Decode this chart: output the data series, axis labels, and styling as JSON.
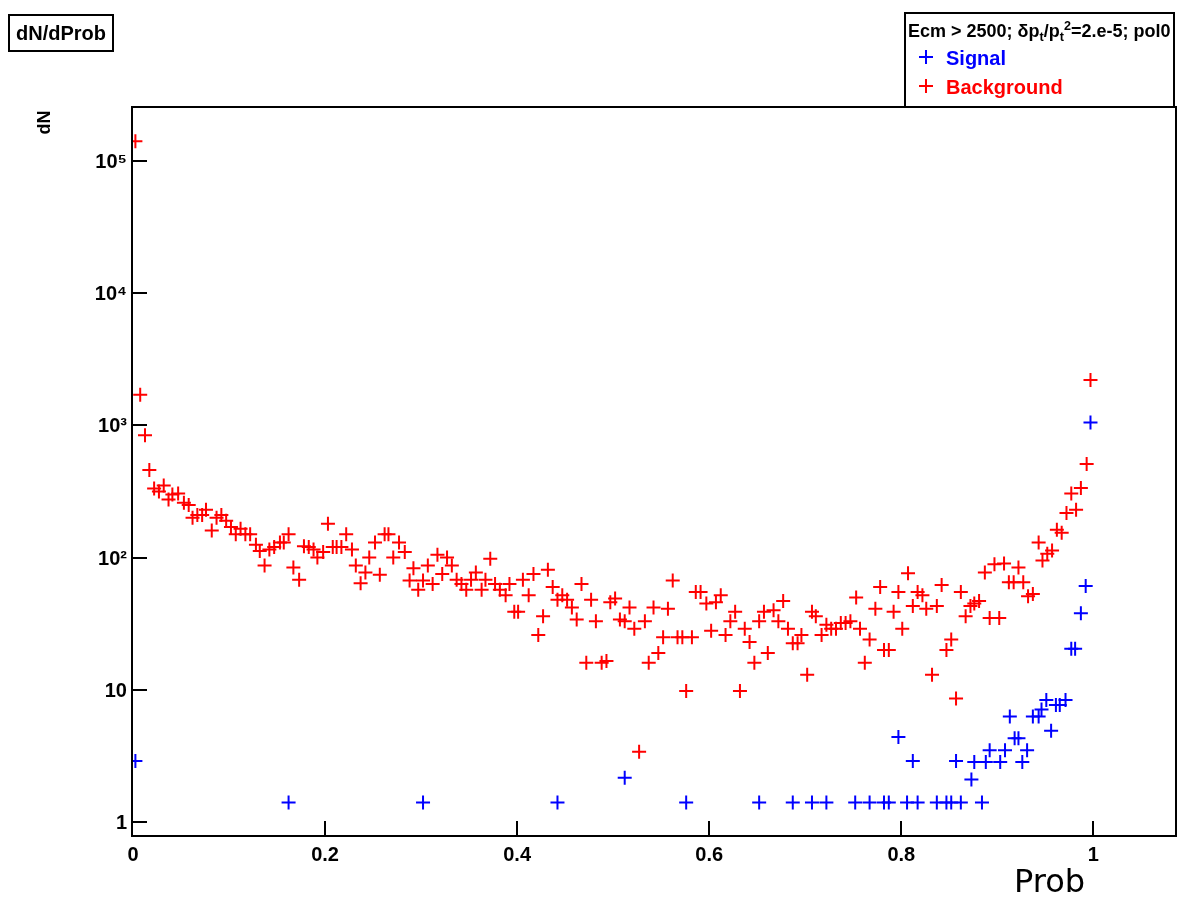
{
  "chart_data": {
    "type": "scatter",
    "title": "dN/dProb",
    "xlabel": "Prob",
    "ylabel": "dN",
    "legend_title": "Ecm > 2500; δp$_{t}$/p$_{t}$$^{2}$=2.e-5; pol0",
    "log": "y",
    "marker": "cross",
    "legend": "top right",
    "grid": false,
    "xlim": [
      0,
      1.085
    ],
    "xticks": [
      0,
      0.2,
      0.4,
      0.6,
      0.8,
      1
    ],
    "ylim": [
      0.8,
      250000
    ],
    "yticks": [
      1,
      10,
      {
        "value": 100,
        "label": "10²"
      },
      {
        "value": 1000,
        "label": "10³"
      },
      {
        "value": 10000,
        "label": "10⁴"
      },
      {
        "value": 100000,
        "label": "10⁵"
      }
    ],
    "series": [
      {
        "name": "Signal",
        "color": "#0000ff",
        "x": [
          0.0025,
          0.162,
          0.302,
          0.442,
          0.512,
          0.576,
          0.652,
          0.687,
          0.707,
          0.722,
          0.752,
          0.767,
          0.782,
          0.787,
          0.797,
          0.806,
          0.812,
          0.817,
          0.837,
          0.847,
          0.852,
          0.857,
          0.862,
          0.873,
          0.876,
          0.884,
          0.888,
          0.892,
          0.903,
          0.908,
          0.913,
          0.918,
          0.922,
          0.926,
          0.931,
          0.937,
          0.943,
          0.946,
          0.951,
          0.956,
          0.961,
          0.965,
          0.971,
          0.977,
          0.981,
          0.987,
          0.992,
          0.997
        ],
        "values": [
          2.9,
          1.41,
          1.41,
          1.41,
          2.17,
          1.41,
          1.41,
          1.41,
          1.41,
          1.41,
          1.41,
          1.41,
          1.41,
          1.41,
          4.4,
          1.41,
          2.9,
          1.41,
          1.41,
          1.41,
          1.41,
          2.9,
          1.41,
          2.1,
          2.85,
          1.41,
          2.85,
          3.5,
          2.85,
          3.5,
          6.3,
          4.3,
          4.3,
          2.85,
          3.5,
          6.3,
          6.3,
          7.1,
          8.4,
          4.9,
          7.7,
          7.7,
          8.4,
          20.5,
          20.5,
          38,
          61,
          1050
        ]
      },
      {
        "name": "Background",
        "color": "#ff0000",
        "x": [
          0.0025,
          0.0075,
          0.0125,
          0.017,
          0.022,
          0.027,
          0.032,
          0.037,
          0.041,
          0.047,
          0.053,
          0.058,
          0.062,
          0.067,
          0.072,
          0.076,
          0.082,
          0.087,
          0.092,
          0.097,
          0.102,
          0.107,
          0.112,
          0.117,
          0.122,
          0.128,
          0.132,
          0.137,
          0.142,
          0.147,
          0.153,
          0.157,
          0.162,
          0.167,
          0.173,
          0.178,
          0.183,
          0.188,
          0.192,
          0.198,
          0.203,
          0.208,
          0.212,
          0.217,
          0.222,
          0.228,
          0.232,
          0.237,
          0.242,
          0.246,
          0.252,
          0.257,
          0.262,
          0.266,
          0.271,
          0.277,
          0.283,
          0.288,
          0.292,
          0.297,
          0.302,
          0.307,
          0.312,
          0.317,
          0.322,
          0.327,
          0.332,
          0.337,
          0.342,
          0.347,
          0.352,
          0.357,
          0.363,
          0.367,
          0.372,
          0.377,
          0.382,
          0.388,
          0.392,
          0.397,
          0.401,
          0.406,
          0.412,
          0.417,
          0.422,
          0.427,
          0.432,
          0.437,
          0.442,
          0.447,
          0.452,
          0.457,
          0.462,
          0.467,
          0.472,
          0.477,
          0.482,
          0.488,
          0.493,
          0.497,
          0.502,
          0.507,
          0.512,
          0.517,
          0.522,
          0.527,
          0.533,
          0.537,
          0.542,
          0.547,
          0.552,
          0.557,
          0.562,
          0.567,
          0.572,
          0.576,
          0.582,
          0.586,
          0.591,
          0.597,
          0.602,
          0.607,
          0.612,
          0.617,
          0.622,
          0.627,
          0.632,
          0.637,
          0.642,
          0.647,
          0.652,
          0.657,
          0.661,
          0.667,
          0.672,
          0.677,
          0.682,
          0.687,
          0.692,
          0.696,
          0.702,
          0.707,
          0.711,
          0.717,
          0.722,
          0.727,
          0.732,
          0.737,
          0.742,
          0.747,
          0.753,
          0.757,
          0.762,
          0.767,
          0.773,
          0.778,
          0.782,
          0.787,
          0.792,
          0.797,
          0.801,
          0.807,
          0.812,
          0.817,
          0.822,
          0.826,
          0.832,
          0.837,
          0.842,
          0.847,
          0.852,
          0.857,
          0.862,
          0.867,
          0.872,
          0.876,
          0.881,
          0.887,
          0.892,
          0.897,
          0.902,
          0.907,
          0.912,
          0.917,
          0.922,
          0.927,
          0.932,
          0.937,
          0.943,
          0.947,
          0.952,
          0.957,
          0.962,
          0.967,
          0.972,
          0.977,
          0.982,
          0.987,
          0.993,
          0.997
        ],
        "values": [
          140000,
          1700,
          840,
          460,
          333,
          316,
          350,
          275,
          300,
          305,
          260,
          250,
          200,
          210,
          210,
          230,
          160,
          200,
          210,
          190,
          170,
          150,
          165,
          150,
          150,
          125,
          112,
          87,
          115,
          120,
          130,
          130,
          150,
          84,
          68,
          122,
          120,
          115,
          100,
          110,
          180,
          120,
          120,
          120,
          150,
          115,
          87,
          64,
          77,
          100,
          130,
          74,
          150,
          150,
          100,
          130,
          110,
          67,
          83,
          57,
          67,
          87,
          63,
          105,
          75,
          100,
          87,
          68,
          63,
          57,
          68,
          77,
          57,
          68,
          98,
          63,
          57,
          52,
          63,
          39,
          39,
          68,
          52,
          75,
          26,
          36,
          81,
          60,
          48,
          52,
          48,
          42,
          34,
          63,
          16,
          48,
          33,
          16,
          16.5,
          46,
          49,
          34,
          33,
          42,
          29,
          3.4,
          33,
          16,
          42,
          19,
          25,
          41,
          67,
          25,
          25,
          9.8,
          25,
          55,
          55,
          45,
          28,
          46,
          52,
          26,
          33,
          39,
          9.8,
          29,
          23,
          16,
          33,
          39,
          19,
          40,
          33,
          47,
          29,
          22.5,
          22.5,
          26,
          13,
          39,
          36,
          26,
          31,
          29,
          29,
          32,
          32,
          33,
          50,
          29,
          16,
          24,
          41,
          60,
          20,
          20,
          39,
          55,
          29,
          76,
          43,
          55,
          52,
          41,
          13,
          43,
          62,
          20,
          24,
          8.6,
          55,
          36,
          43,
          45,
          47,
          77,
          35,
          89,
          35,
          90,
          65,
          65,
          84,
          65,
          51,
          53,
          130,
          95,
          107,
          113,
          162,
          154,
          217,
          305,
          230,
          335,
          510,
          2200
        ]
      }
    ]
  }
}
